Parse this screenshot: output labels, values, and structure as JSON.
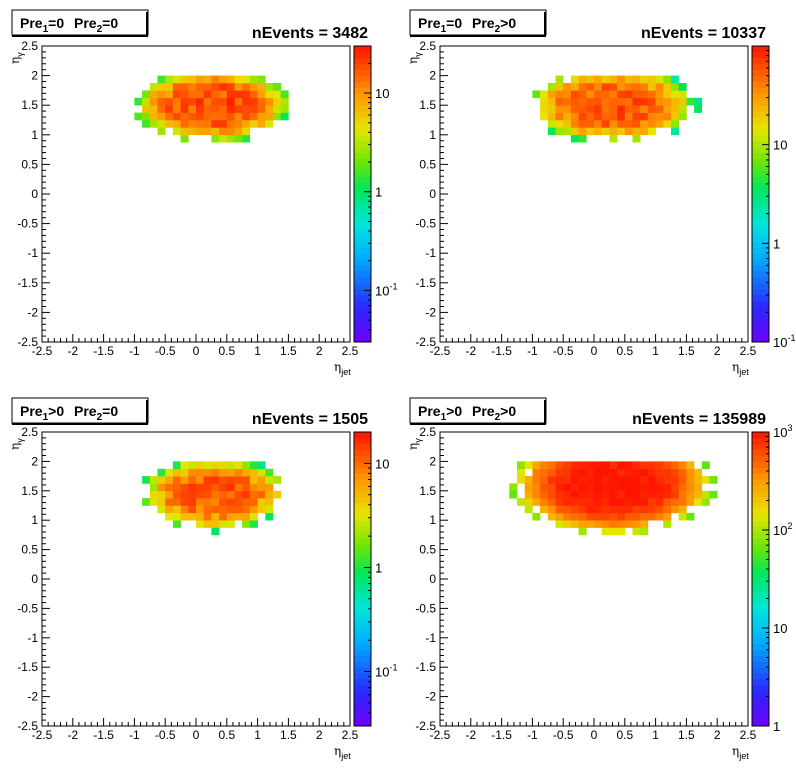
{
  "chart_data": [
    {
      "type": "heatmap",
      "title": "Pre1=0  Pre2=0",
      "title_parts": {
        "a": "Pre",
        "a_sub": "1",
        "a_rest": "=0",
        "b": "Pre",
        "b_sub": "2",
        "b_rest": "=0"
      },
      "annotation": "nEvents = 3482",
      "xlabel": "η",
      "xlabel_sub": "jet",
      "ylabel": "η",
      "ylabel_sub": "γ",
      "xlim": [
        -2.5,
        2.5
      ],
      "ylim": [
        -2.5,
        2.5
      ],
      "xticks": [
        "-2.5",
        "-2",
        "-1.5",
        "-1",
        "-0.5",
        "0",
        "0.5",
        "1",
        "1.5",
        "2",
        "2.5"
      ],
      "yticks": [
        "-2.5",
        "-2",
        "-1.5",
        "-1",
        "-0.5",
        "0",
        "0.5",
        "1",
        "1.5",
        "2",
        "2.5"
      ],
      "color_scale": "log",
      "z_range": [
        0.03,
        30
      ],
      "z_ticks": [
        {
          "value": 10,
          "label": "10"
        },
        {
          "value": 1,
          "label": "1"
        },
        {
          "value": 0.1,
          "label": "10",
          "sup": "-1"
        }
      ],
      "blob": {
        "x_center": 0.25,
        "y_center": 1.5,
        "x_halfwidth": 1.1,
        "y_halfwidth": 0.55,
        "peak": 20
      }
    },
    {
      "type": "heatmap",
      "title": "Pre1=0  Pre2>0",
      "title_parts": {
        "a": "Pre",
        "a_sub": "1",
        "a_rest": "=0",
        "b": "Pre",
        "b_sub": "2",
        "b_rest": ">0"
      },
      "annotation": "nEvents = 10337",
      "xlabel": "η",
      "xlabel_sub": "jet",
      "ylabel": "η",
      "ylabel_sub": "γ",
      "xlim": [
        -2.5,
        2.5
      ],
      "ylim": [
        -2.5,
        2.5
      ],
      "xticks": [
        "-2.5",
        "-2",
        "-1.5",
        "-1",
        "-0.5",
        "0",
        "0.5",
        "1",
        "1.5",
        "2",
        "2.5"
      ],
      "yticks": [
        "-2.5",
        "-2",
        "-1.5",
        "-1",
        "-0.5",
        "0",
        "0.5",
        "1",
        "1.5",
        "2",
        "2.5"
      ],
      "color_scale": "log",
      "z_range": [
        0.1,
        100
      ],
      "z_ticks": [
        {
          "value": 10,
          "label": "10"
        },
        {
          "value": 1,
          "label": "1"
        },
        {
          "value": 0.1,
          "label": "10",
          "sup": "-1"
        }
      ],
      "blob": {
        "x_center": 0.3,
        "y_center": 1.5,
        "x_halfwidth": 1.2,
        "y_halfwidth": 0.55,
        "peak": 60
      }
    },
    {
      "type": "heatmap",
      "title": "Pre1>0  Pre2=0",
      "title_parts": {
        "a": "Pre",
        "a_sub": "1",
        "a_rest": ">0",
        "b": "Pre",
        "b_sub": "2",
        "b_rest": "=0"
      },
      "annotation": "nEvents = 1505",
      "xlabel": "η",
      "xlabel_sub": "jet",
      "ylabel": "η",
      "ylabel_sub": "γ",
      "xlim": [
        -2.5,
        2.5
      ],
      "ylim": [
        -2.5,
        2.5
      ],
      "xticks": [
        "-2.5",
        "-2",
        "-1.5",
        "-1",
        "-0.5",
        "0",
        "0.5",
        "1",
        "1.5",
        "2",
        "2.5"
      ],
      "yticks": [
        "-2.5",
        "-2",
        "-1.5",
        "-1",
        "-0.5",
        "0",
        "0.5",
        "1",
        "1.5",
        "2",
        "2.5"
      ],
      "color_scale": "log",
      "z_range": [
        0.03,
        20
      ],
      "z_ticks": [
        {
          "value": 10,
          "label": "10"
        },
        {
          "value": 1,
          "label": "1"
        },
        {
          "value": 0.1,
          "label": "10",
          "sup": "-1"
        }
      ],
      "blob": {
        "x_center": 0.3,
        "y_center": 1.45,
        "x_halfwidth": 1.05,
        "y_halfwidth": 0.55,
        "peak": 12
      }
    },
    {
      "type": "heatmap",
      "title": "Pre1>0  Pre2>0",
      "title_parts": {
        "a": "Pre",
        "a_sub": "1",
        "a_rest": ">0",
        "b": "Pre",
        "b_sub": "2",
        "b_rest": ">0"
      },
      "annotation": "nEvents = 135989",
      "xlabel": "η",
      "xlabel_sub": "jet",
      "ylabel": "η",
      "ylabel_sub": "γ",
      "xlim": [
        -2.5,
        2.5
      ],
      "ylim": [
        -2.5,
        2.5
      ],
      "xticks": [
        "-2.5",
        "-2",
        "-1.5",
        "-1",
        "-0.5",
        "0",
        "0.5",
        "1",
        "1.5",
        "2",
        "2.5"
      ],
      "yticks": [
        "-2.5",
        "-2",
        "-1.5",
        "-1",
        "-0.5",
        "0",
        "0.5",
        "1",
        "1.5",
        "2",
        "2.5"
      ],
      "color_scale": "log",
      "z_range": [
        1,
        1000
      ],
      "z_ticks": [
        {
          "value": 1000,
          "label": "10",
          "sup": "3"
        },
        {
          "value": 100,
          "label": "10",
          "sup": "2"
        },
        {
          "value": 10,
          "label": "10"
        },
        {
          "value": 1,
          "label": "1"
        }
      ],
      "blob": {
        "x_center": 0.3,
        "y_center": 1.6,
        "x_halfwidth": 1.45,
        "y_halfwidth": 0.75,
        "peak": 1000
      }
    }
  ]
}
